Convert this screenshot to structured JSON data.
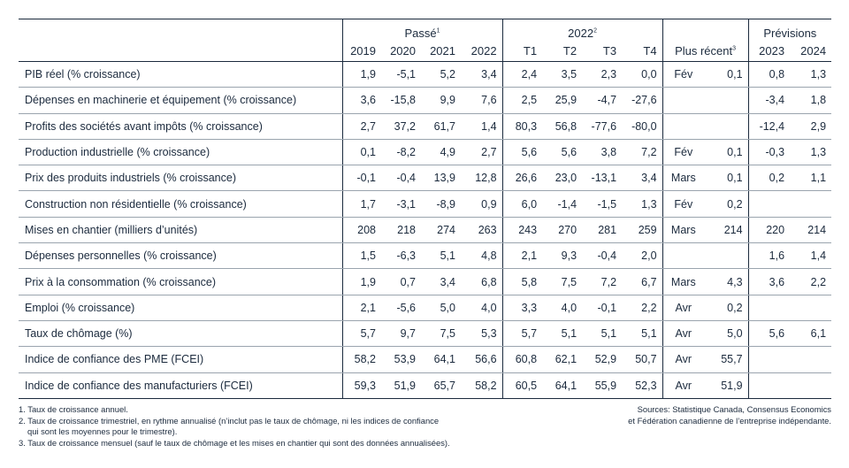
{
  "header": {
    "groups": {
      "past": "Passé",
      "past_sup": "1",
      "quarters": "2022",
      "quarters_sup": "2",
      "forecast": "Prévisions"
    },
    "columns": {
      "y2019": "2019",
      "y2020": "2020",
      "y2021": "2021",
      "y2022": "2022",
      "t1": "T1",
      "t2": "T2",
      "t3": "T3",
      "t4": "T4",
      "recent": "Plus récent",
      "recent_sup": "3",
      "f2023": "2023",
      "f2024": "2024"
    }
  },
  "rows": [
    {
      "label": "PIB réel (% croissance)",
      "p": [
        "1,9",
        "-5,1",
        "5,2",
        "3,4"
      ],
      "q": [
        "2,4",
        "3,5",
        "2,3",
        "0,0"
      ],
      "rm": "Fév",
      "rv": "0,1",
      "f": [
        "0,8",
        "1,3"
      ]
    },
    {
      "label": "Dépenses en machinerie et équipement (% croissance)",
      "p": [
        "3,6",
        "-15,8",
        "9,9",
        "7,6"
      ],
      "q": [
        "2,5",
        "25,9",
        "-4,7",
        "-27,6"
      ],
      "rm": "",
      "rv": "",
      "f": [
        "-3,4",
        "1,8"
      ]
    },
    {
      "label": "Profits des sociétés avant impôts (% croissance)",
      "p": [
        "2,7",
        "37,2",
        "61,7",
        "1,4"
      ],
      "q": [
        "80,3",
        "56,8",
        "-77,6",
        "-80,0"
      ],
      "rm": "",
      "rv": "",
      "f": [
        "-12,4",
        "2,9"
      ]
    },
    {
      "label": "Production industrielle (% croissance)",
      "p": [
        "0,1",
        "-8,2",
        "4,9",
        "2,7"
      ],
      "q": [
        "5,6",
        "5,6",
        "3,8",
        "7,2"
      ],
      "rm": "Fév",
      "rv": "0,1",
      "f": [
        "-0,3",
        "1,3"
      ]
    },
    {
      "label": "Prix des produits industriels (% croissance)",
      "p": [
        "-0,1",
        "-0,4",
        "13,9",
        "12,8"
      ],
      "q": [
        "26,6",
        "23,0",
        "-13,1",
        "3,4"
      ],
      "rm": "Mars",
      "rv": "0,1",
      "f": [
        "0,2",
        "1,1"
      ]
    },
    {
      "label": "Construction non résidentielle (% croissance)",
      "p": [
        "1,7",
        "-3,1",
        "-8,9",
        "0,9"
      ],
      "q": [
        "6,0",
        "-1,4",
        "-1,5",
        "1,3"
      ],
      "rm": "Fév",
      "rv": "0,2",
      "f": [
        "",
        ""
      ]
    },
    {
      "label": "Mises en chantier (milliers d’unités)",
      "p": [
        "208",
        "218",
        "274",
        "263"
      ],
      "q": [
        "243",
        "270",
        "281",
        "259"
      ],
      "rm": "Mars",
      "rv": "214",
      "f": [
        "220",
        "214"
      ]
    },
    {
      "label": "Dépenses personnelles (% croissance)",
      "p": [
        "1,5",
        "-6,3",
        "5,1",
        "4,8"
      ],
      "q": [
        "2,1",
        "9,3",
        "-0,4",
        "2,0"
      ],
      "rm": "",
      "rv": "",
      "f": [
        "1,6",
        "1,4"
      ]
    },
    {
      "label": "Prix à la consommation (% croissance)",
      "p": [
        "1,9",
        "0,7",
        "3,4",
        "6,8"
      ],
      "q": [
        "5,8",
        "7,5",
        "7,2",
        "6,7"
      ],
      "rm": "Mars",
      "rv": "4,3",
      "f": [
        "3,6",
        "2,2"
      ]
    },
    {
      "label": "Emploi (% croissance)",
      "p": [
        "2,1",
        "-5,6",
        "5,0",
        "4,0"
      ],
      "q": [
        "3,3",
        "4,0",
        "-0,1",
        "2,2"
      ],
      "rm": "Avr",
      "rv": "0,2",
      "f": [
        "",
        ""
      ]
    },
    {
      "label": "Taux de chômage (%)",
      "p": [
        "5,7",
        "9,7",
        "7,5",
        "5,3"
      ],
      "q": [
        "5,7",
        "5,1",
        "5,1",
        "5,1"
      ],
      "rm": "Avr",
      "rv": "5,0",
      "f": [
        "5,6",
        "6,1"
      ]
    },
    {
      "label": "Indice de confiance des PME (FCEI)",
      "p": [
        "58,2",
        "53,9",
        "64,1",
        "56,6"
      ],
      "q": [
        "60,8",
        "62,1",
        "52,9",
        "50,7"
      ],
      "rm": "Avr",
      "rv": "55,7",
      "f": [
        "",
        ""
      ]
    },
    {
      "label": "Indice de confiance des manufacturiers (FCEI)",
      "p": [
        "59,3",
        "51,9",
        "65,7",
        "58,2"
      ],
      "q": [
        "60,5",
        "64,1",
        "55,9",
        "52,3"
      ],
      "rm": "Avr",
      "rv": "51,9",
      "f": [
        "",
        ""
      ]
    }
  ],
  "notes": {
    "n1": "1. Taux de croissance annuel.",
    "n2a": "2. Taux de croissance trimestriel, en rythme annualisé (n’inclut pas le taux de chômage, ni les indices de confiance",
    "n2b": "qui sont les moyennes pour le trimestre).",
    "n3": "3. Taux de croissance mensuel (sauf le taux de chômage et les mises en chantier qui sont des données annualisées)."
  },
  "sources": {
    "line1": "Sources: Statistique Canada, Consensus Economics",
    "line2": "et Fédération canadienne de l’entreprise indépendante."
  }
}
